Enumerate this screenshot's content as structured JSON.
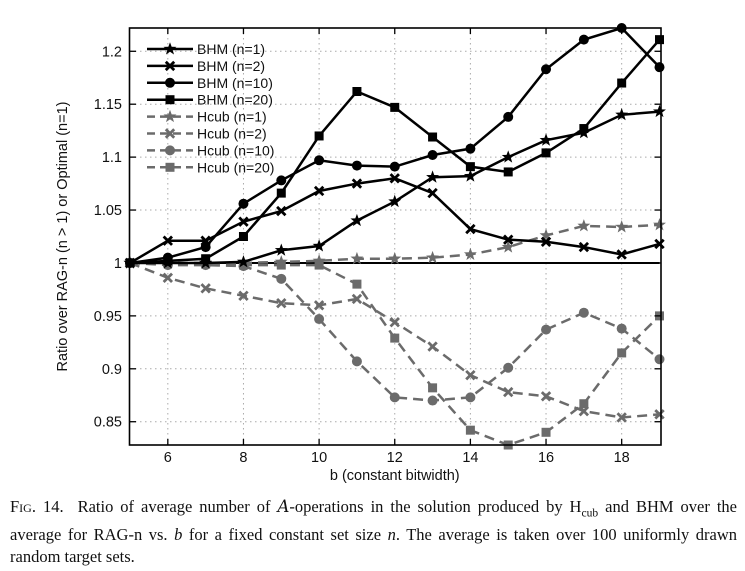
{
  "chart_data": {
    "type": "line",
    "title": "",
    "xlabel": "b (constant bitwidth)",
    "ylabel": "Ratio over RAG-n (n > 1) or Optimal (n=1)",
    "xlim": [
      5,
      19
    ],
    "ylim": [
      0.828,
      1.222
    ],
    "grid": true,
    "legend_position": "upper-left",
    "reference_line_y": 1.0,
    "x": [
      5,
      6,
      7,
      8,
      9,
      10,
      11,
      12,
      13,
      14,
      15,
      16,
      17,
      18,
      19
    ],
    "xticks": [
      6,
      8,
      10,
      12,
      14,
      16,
      18
    ],
    "ytick_values": [
      0.85,
      0.9,
      0.95,
      1.0,
      1.05,
      1.1,
      1.15,
      1.2
    ],
    "ytick_labels": [
      "0.85",
      "0.9",
      "0.95",
      "1",
      "1.05",
      "1.1",
      "1.15",
      "1.2"
    ],
    "colors": {
      "bhm_black": "#000000",
      "hcub_gray": "#6b6b6b",
      "grid_gray": "#aaaaaa"
    },
    "series": [
      {
        "name": "BHM (n=1)",
        "marker": "star",
        "dash": "solid",
        "color": "#000000",
        "values": [
          1.0,
          1.0,
          1.0,
          1.001,
          1.012,
          1.016,
          1.04,
          1.058,
          1.081,
          1.082,
          1.1,
          1.116,
          1.123,
          1.14,
          1.143
        ]
      },
      {
        "name": "BHM (n=2)",
        "marker": "x",
        "dash": "solid",
        "color": "#000000",
        "values": [
          1.0,
          1.021,
          1.021,
          1.039,
          1.049,
          1.068,
          1.075,
          1.08,
          1.066,
          1.032,
          1.022,
          1.02,
          1.015,
          1.008,
          1.018
        ]
      },
      {
        "name": "BHM (n=10)",
        "marker": "circle",
        "dash": "solid",
        "color": "#000000",
        "values": [
          1.0,
          1.005,
          1.015,
          1.056,
          1.078,
          1.097,
          1.092,
          1.091,
          1.102,
          1.108,
          1.138,
          1.183,
          1.211,
          1.222,
          1.185
        ]
      },
      {
        "name": "BHM (n=20)",
        "marker": "square",
        "dash": "solid",
        "color": "#000000",
        "values": [
          1.0,
          1.002,
          1.004,
          1.025,
          1.066,
          1.12,
          1.162,
          1.147,
          1.119,
          1.091,
          1.086,
          1.104,
          1.127,
          1.17,
          1.211
        ]
      },
      {
        "name": "Hcub (n=1)",
        "marker": "star",
        "dash": "dashed",
        "color": "#6b6b6b",
        "values": [
          1.0,
          1.0,
          1.0,
          1.0,
          1.001,
          1.002,
          1.004,
          1.004,
          1.005,
          1.008,
          1.015,
          1.026,
          1.035,
          1.034,
          1.036
        ]
      },
      {
        "name": "Hcub (n=2)",
        "marker": "x",
        "dash": "dashed",
        "color": "#6b6b6b",
        "values": [
          1.0,
          0.986,
          0.976,
          0.969,
          0.962,
          0.96,
          0.966,
          0.944,
          0.921,
          0.894,
          0.878,
          0.874,
          0.86,
          0.854,
          0.857
        ]
      },
      {
        "name": "Hcub (n=10)",
        "marker": "circle",
        "dash": "dashed",
        "color": "#6b6b6b",
        "values": [
          1.0,
          0.998,
          0.998,
          0.997,
          0.985,
          0.947,
          0.907,
          0.873,
          0.87,
          0.873,
          0.901,
          0.937,
          0.953,
          0.938,
          0.909
        ]
      },
      {
        "name": "Hcub (n=20)",
        "marker": "square",
        "dash": "dashed",
        "color": "#6b6b6b",
        "values": [
          1.0,
          1.0,
          0.999,
          0.998,
          0.998,
          0.998,
          0.98,
          0.929,
          0.882,
          0.842,
          0.828,
          0.84,
          0.867,
          0.915,
          0.95
        ]
      }
    ]
  },
  "caption": {
    "label": "Fig. 14.",
    "part1": "Ratio of average number of ",
    "math_a": "A",
    "part2": "-operations in the solution produced by H",
    "h_sub": "cub",
    "part3": " and BHM over the average for RAG-n vs. ",
    "math_b": "b",
    "part4": " for a fixed constant set size ",
    "math_n": "n",
    "part5": ". The average is taken over 100 uniformly drawn random target sets."
  }
}
